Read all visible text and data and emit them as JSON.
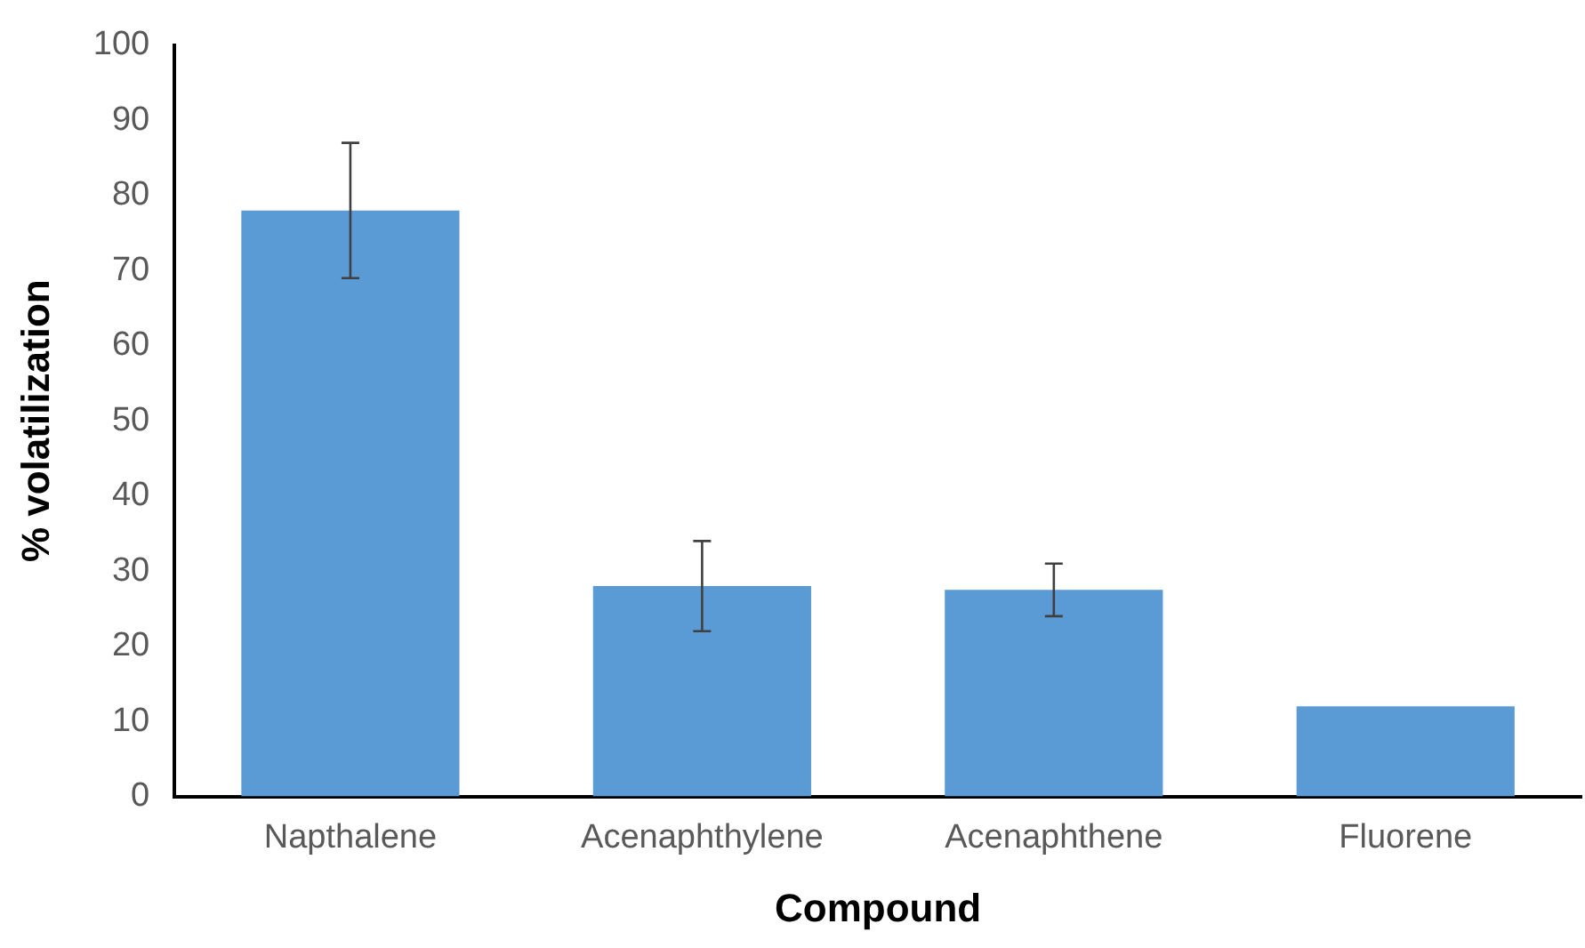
{
  "chart_data": {
    "type": "bar",
    "xlabel": "Compound",
    "ylabel": "% volatilization",
    "categories": [
      "Napthalene",
      "Acenaphthylene",
      "Acenaphthene",
      "Fluorene"
    ],
    "values": [
      78,
      28,
      27.5,
      12
    ],
    "errors": [
      [
        69,
        87
      ],
      [
        22,
        34
      ],
      [
        24,
        31
      ],
      null
    ],
    "color": "#5b9bd5",
    "ylim": [
      0,
      100
    ],
    "yticks": [
      0,
      10,
      20,
      30,
      40,
      50,
      60,
      70,
      80,
      90,
      100
    ],
    "grid": false,
    "legend": false
  }
}
